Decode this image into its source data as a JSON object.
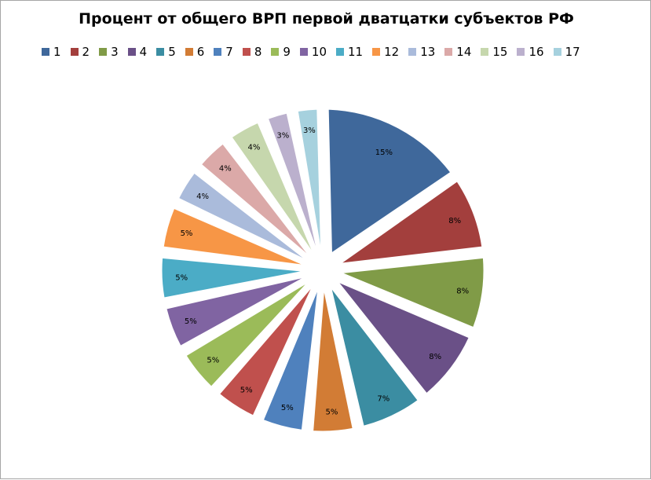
{
  "chart_data": {
    "type": "pie",
    "title": "Процент от общего ВРП первой дватцатки субъектов РФ",
    "legend_position": "top",
    "categories": [
      "1",
      "2",
      "3",
      "4",
      "5",
      "6",
      "7",
      "8",
      "9",
      "10",
      "11",
      "12",
      "13",
      "14",
      "15",
      "16",
      "17"
    ],
    "values": [
      15,
      8,
      8,
      8,
      7,
      5,
      5,
      5,
      5,
      5,
      5,
      5,
      4,
      4,
      4,
      3,
      3
    ],
    "labels": [
      "15%",
      "8%",
      "8%",
      "8%",
      "7%",
      "5%",
      "5%",
      "5%",
      "5%",
      "5%",
      "5%",
      "5%",
      "4%",
      "4%",
      "4%",
      "3%",
      "3%"
    ],
    "colors": [
      "#3f689b",
      "#a33f3d",
      "#809b47",
      "#6a5087",
      "#3b8da2",
      "#d27c35",
      "#4f81bd",
      "#c0504d",
      "#9bbb59",
      "#8064a2",
      "#4bacc6",
      "#f79646",
      "#aabbdb",
      "#dba9a8",
      "#c6d7ad",
      "#bbb0cd",
      "#a6d1de"
    ],
    "exploded": true
  }
}
